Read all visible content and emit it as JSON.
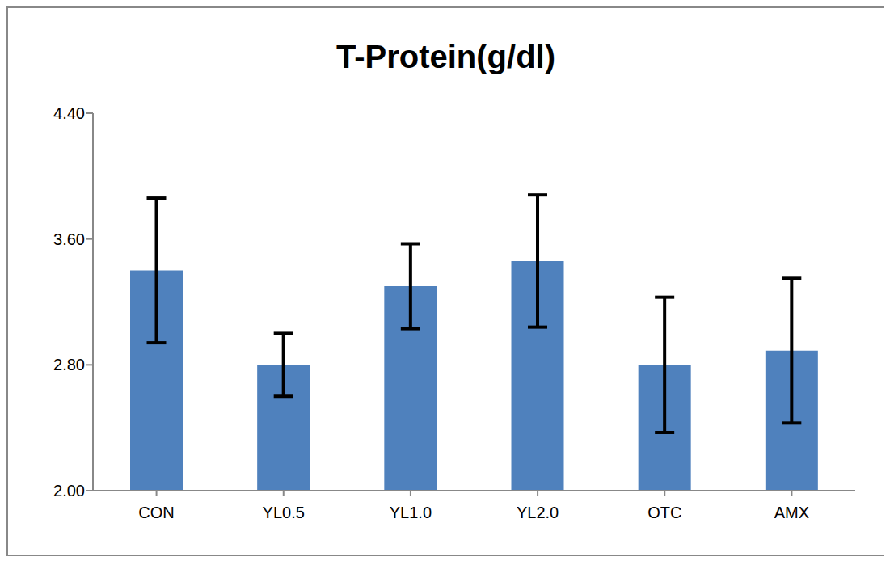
{
  "chart_data": {
    "type": "bar",
    "title": "T-Protein(g/dl)",
    "categories": [
      "CON",
      "YL0.5",
      "YL1.0",
      "YL2.0",
      "OTC",
      "AMX"
    ],
    "values": [
      3.4,
      2.8,
      3.3,
      3.46,
      2.8,
      2.89
    ],
    "error": [
      0.46,
      0.2,
      0.27,
      0.42,
      0.43,
      0.46
    ],
    "color": "#4f81bd",
    "ylim": [
      2,
      4.4
    ],
    "yticks": [
      {
        "value": 2,
        "label": "2.00"
      },
      {
        "value": 2.8,
        "label": "2.80"
      },
      {
        "value": 3.6,
        "label": "3.60"
      },
      {
        "value": 4.4,
        "label": "4.40"
      }
    ],
    "grid": false
  }
}
